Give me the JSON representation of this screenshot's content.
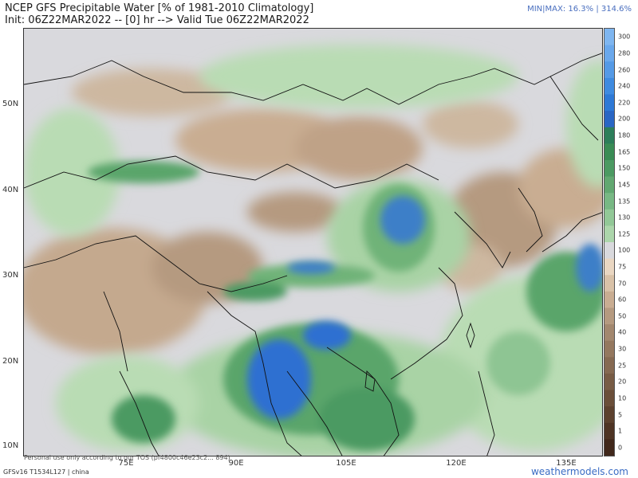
{
  "header": {
    "title_line1": "NCEP GFS Precipitable Water [% of 1981-2010 Climatology]",
    "title_line2": "Init: 06Z22MAR2022 -- [0] hr --> Valid Tue 06Z22MAR2022",
    "minmax": "MIN|MAX: 16.3% | 314.6%"
  },
  "map": {
    "lat_labels": [
      "50N",
      "40N",
      "30N",
      "20N",
      "10N"
    ],
    "lon_labels": [
      "75E",
      "90E",
      "105E",
      "120E",
      "135E"
    ],
    "colors": {
      "land_base": "#d9d9dd",
      "low_brown": "#b59a80",
      "tan": "#cdb8a0",
      "light_green": "#b9dcb4",
      "mid_green": "#6fb378",
      "dark_green": "#3a8c55",
      "blue": "#2e6fd1"
    }
  },
  "colorbar": {
    "ticks": [
      "300",
      "280",
      "260",
      "240",
      "220",
      "200",
      "180",
      "165",
      "150",
      "145",
      "135",
      "130",
      "125",
      "100",
      "75",
      "70",
      "60",
      "50",
      "40",
      "30",
      "25",
      "20",
      "10",
      "5",
      "1",
      "0"
    ],
    "colors": [
      "#7fb6f0",
      "#6aa8ec",
      "#559ae6",
      "#3f8be0",
      "#2e79d6",
      "#2a66c4",
      "#2d7e5a",
      "#3a8c55",
      "#4c9a62",
      "#62a871",
      "#78b884",
      "#92c897",
      "#acd6ab",
      "#d9d9dd",
      "#ead7c2",
      "#d9c2a8",
      "#c9ad92",
      "#b59a80",
      "#a3886f",
      "#94785f",
      "#866a52",
      "#785c45",
      "#6a4e39",
      "#5c412e",
      "#4e3424",
      "#41281b"
    ]
  },
  "footer": {
    "model": "GFSv16 T1534L127 | china",
    "disclaimer": "Personal use only according to our TOS (pf4800c46e23c2... 894)",
    "brand": "weathermodels.com"
  }
}
